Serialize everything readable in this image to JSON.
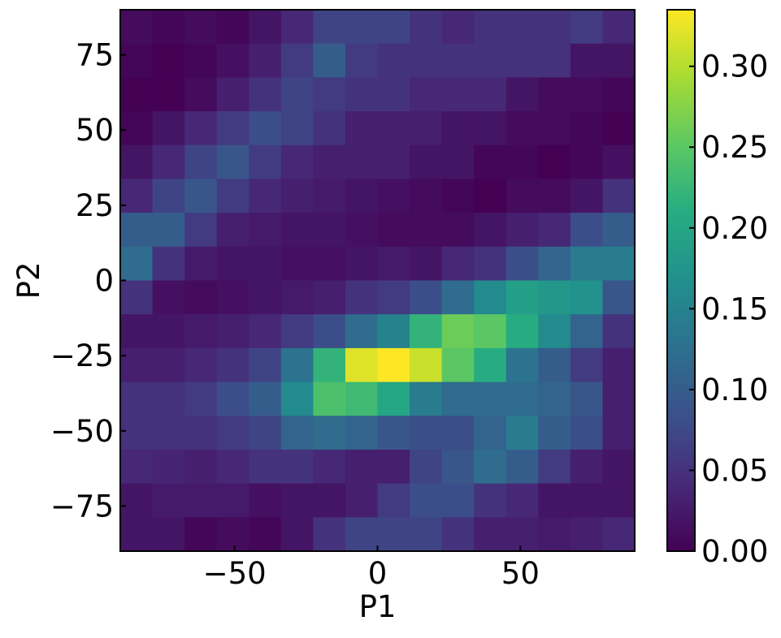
{
  "chart_data": {
    "type": "heatmap",
    "xlabel": "P1",
    "ylabel": "P2",
    "xlim": [
      -90,
      90
    ],
    "ylim": [
      -90,
      90
    ],
    "x_bins": [
      -90,
      -78.75,
      -67.5,
      -56.25,
      -45,
      -33.75,
      -22.5,
      -11.25,
      0,
      11.25,
      22.5,
      33.75,
      45,
      56.25,
      67.5,
      78.75,
      90
    ],
    "y_bins": [
      -90,
      -78.75,
      -67.5,
      -56.25,
      -45,
      -33.75,
      -22.5,
      -11.25,
      0,
      11.25,
      22.5,
      33.75,
      45,
      56.25,
      67.5,
      78.75,
      90
    ],
    "x_ticks": [
      -50,
      0,
      50
    ],
    "x_tick_labels": [
      "−50",
      "0",
      "50"
    ],
    "y_ticks": [
      -75,
      -50,
      -25,
      0,
      25,
      50,
      75
    ],
    "y_tick_labels": [
      "−75",
      "−50",
      "−25",
      "0",
      "25",
      "50",
      "75"
    ],
    "colormap": "viridis",
    "colorbar": {
      "range": [
        0.0,
        0.335
      ],
      "ticks": [
        0.0,
        0.05,
        0.1,
        0.15,
        0.2,
        0.25,
        0.3
      ],
      "tick_labels": [
        "0.00",
        "0.05",
        "0.10",
        "0.15",
        "0.20",
        "0.25",
        "0.30"
      ]
    },
    "values_rows_top_to_bottom": [
      [
        0.01,
        0.005,
        0.01,
        0.005,
        0.02,
        0.04,
        0.07,
        0.07,
        0.07,
        0.05,
        0.04,
        0.05,
        0.05,
        0.05,
        0.06,
        0.04
      ],
      [
        0.005,
        0.0,
        0.005,
        0.015,
        0.03,
        0.06,
        0.1,
        0.06,
        0.05,
        0.05,
        0.05,
        0.05,
        0.05,
        0.05,
        0.02,
        0.02
      ],
      [
        0.0,
        0.0,
        0.01,
        0.03,
        0.05,
        0.07,
        0.06,
        0.05,
        0.05,
        0.04,
        0.04,
        0.04,
        0.02,
        0.01,
        0.01,
        0.005
      ],
      [
        0.005,
        0.02,
        0.04,
        0.06,
        0.08,
        0.07,
        0.05,
        0.03,
        0.03,
        0.03,
        0.02,
        0.02,
        0.01,
        0.01,
        0.005,
        0.0
      ],
      [
        0.02,
        0.04,
        0.07,
        0.09,
        0.06,
        0.04,
        0.03,
        0.03,
        0.03,
        0.02,
        0.02,
        0.005,
        0.005,
        0.0,
        0.005,
        0.015
      ],
      [
        0.04,
        0.07,
        0.09,
        0.06,
        0.04,
        0.03,
        0.025,
        0.02,
        0.015,
        0.01,
        0.005,
        0.0,
        0.01,
        0.01,
        0.02,
        0.05
      ],
      [
        0.1,
        0.1,
        0.06,
        0.03,
        0.025,
        0.02,
        0.02,
        0.015,
        0.01,
        0.01,
        0.01,
        0.02,
        0.03,
        0.04,
        0.08,
        0.1
      ],
      [
        0.12,
        0.05,
        0.025,
        0.02,
        0.02,
        0.015,
        0.015,
        0.02,
        0.025,
        0.02,
        0.04,
        0.05,
        0.08,
        0.11,
        0.14,
        0.14
      ],
      [
        0.05,
        0.015,
        0.01,
        0.015,
        0.02,
        0.025,
        0.03,
        0.05,
        0.06,
        0.08,
        0.12,
        0.16,
        0.19,
        0.18,
        0.17,
        0.09
      ],
      [
        0.02,
        0.02,
        0.025,
        0.03,
        0.04,
        0.06,
        0.08,
        0.12,
        0.15,
        0.22,
        0.26,
        0.25,
        0.21,
        0.16,
        0.11,
        0.05
      ],
      [
        0.03,
        0.03,
        0.04,
        0.05,
        0.07,
        0.13,
        0.22,
        0.32,
        0.335,
        0.31,
        0.25,
        0.21,
        0.13,
        0.1,
        0.06,
        0.03
      ],
      [
        0.05,
        0.05,
        0.06,
        0.08,
        0.1,
        0.16,
        0.24,
        0.23,
        0.2,
        0.14,
        0.12,
        0.12,
        0.12,
        0.11,
        0.09,
        0.03
      ],
      [
        0.05,
        0.05,
        0.05,
        0.06,
        0.07,
        0.11,
        0.12,
        0.11,
        0.09,
        0.08,
        0.08,
        0.11,
        0.14,
        0.1,
        0.08,
        0.03
      ],
      [
        0.04,
        0.035,
        0.03,
        0.04,
        0.05,
        0.05,
        0.04,
        0.03,
        0.03,
        0.07,
        0.09,
        0.12,
        0.1,
        0.06,
        0.03,
        0.02
      ],
      [
        0.02,
        0.025,
        0.025,
        0.025,
        0.015,
        0.02,
        0.02,
        0.03,
        0.06,
        0.08,
        0.08,
        0.05,
        0.04,
        0.02,
        0.02,
        0.02
      ],
      [
        0.02,
        0.02,
        0.005,
        0.01,
        0.005,
        0.02,
        0.05,
        0.07,
        0.07,
        0.07,
        0.05,
        0.03,
        0.03,
        0.025,
        0.03,
        0.04
      ]
    ]
  }
}
